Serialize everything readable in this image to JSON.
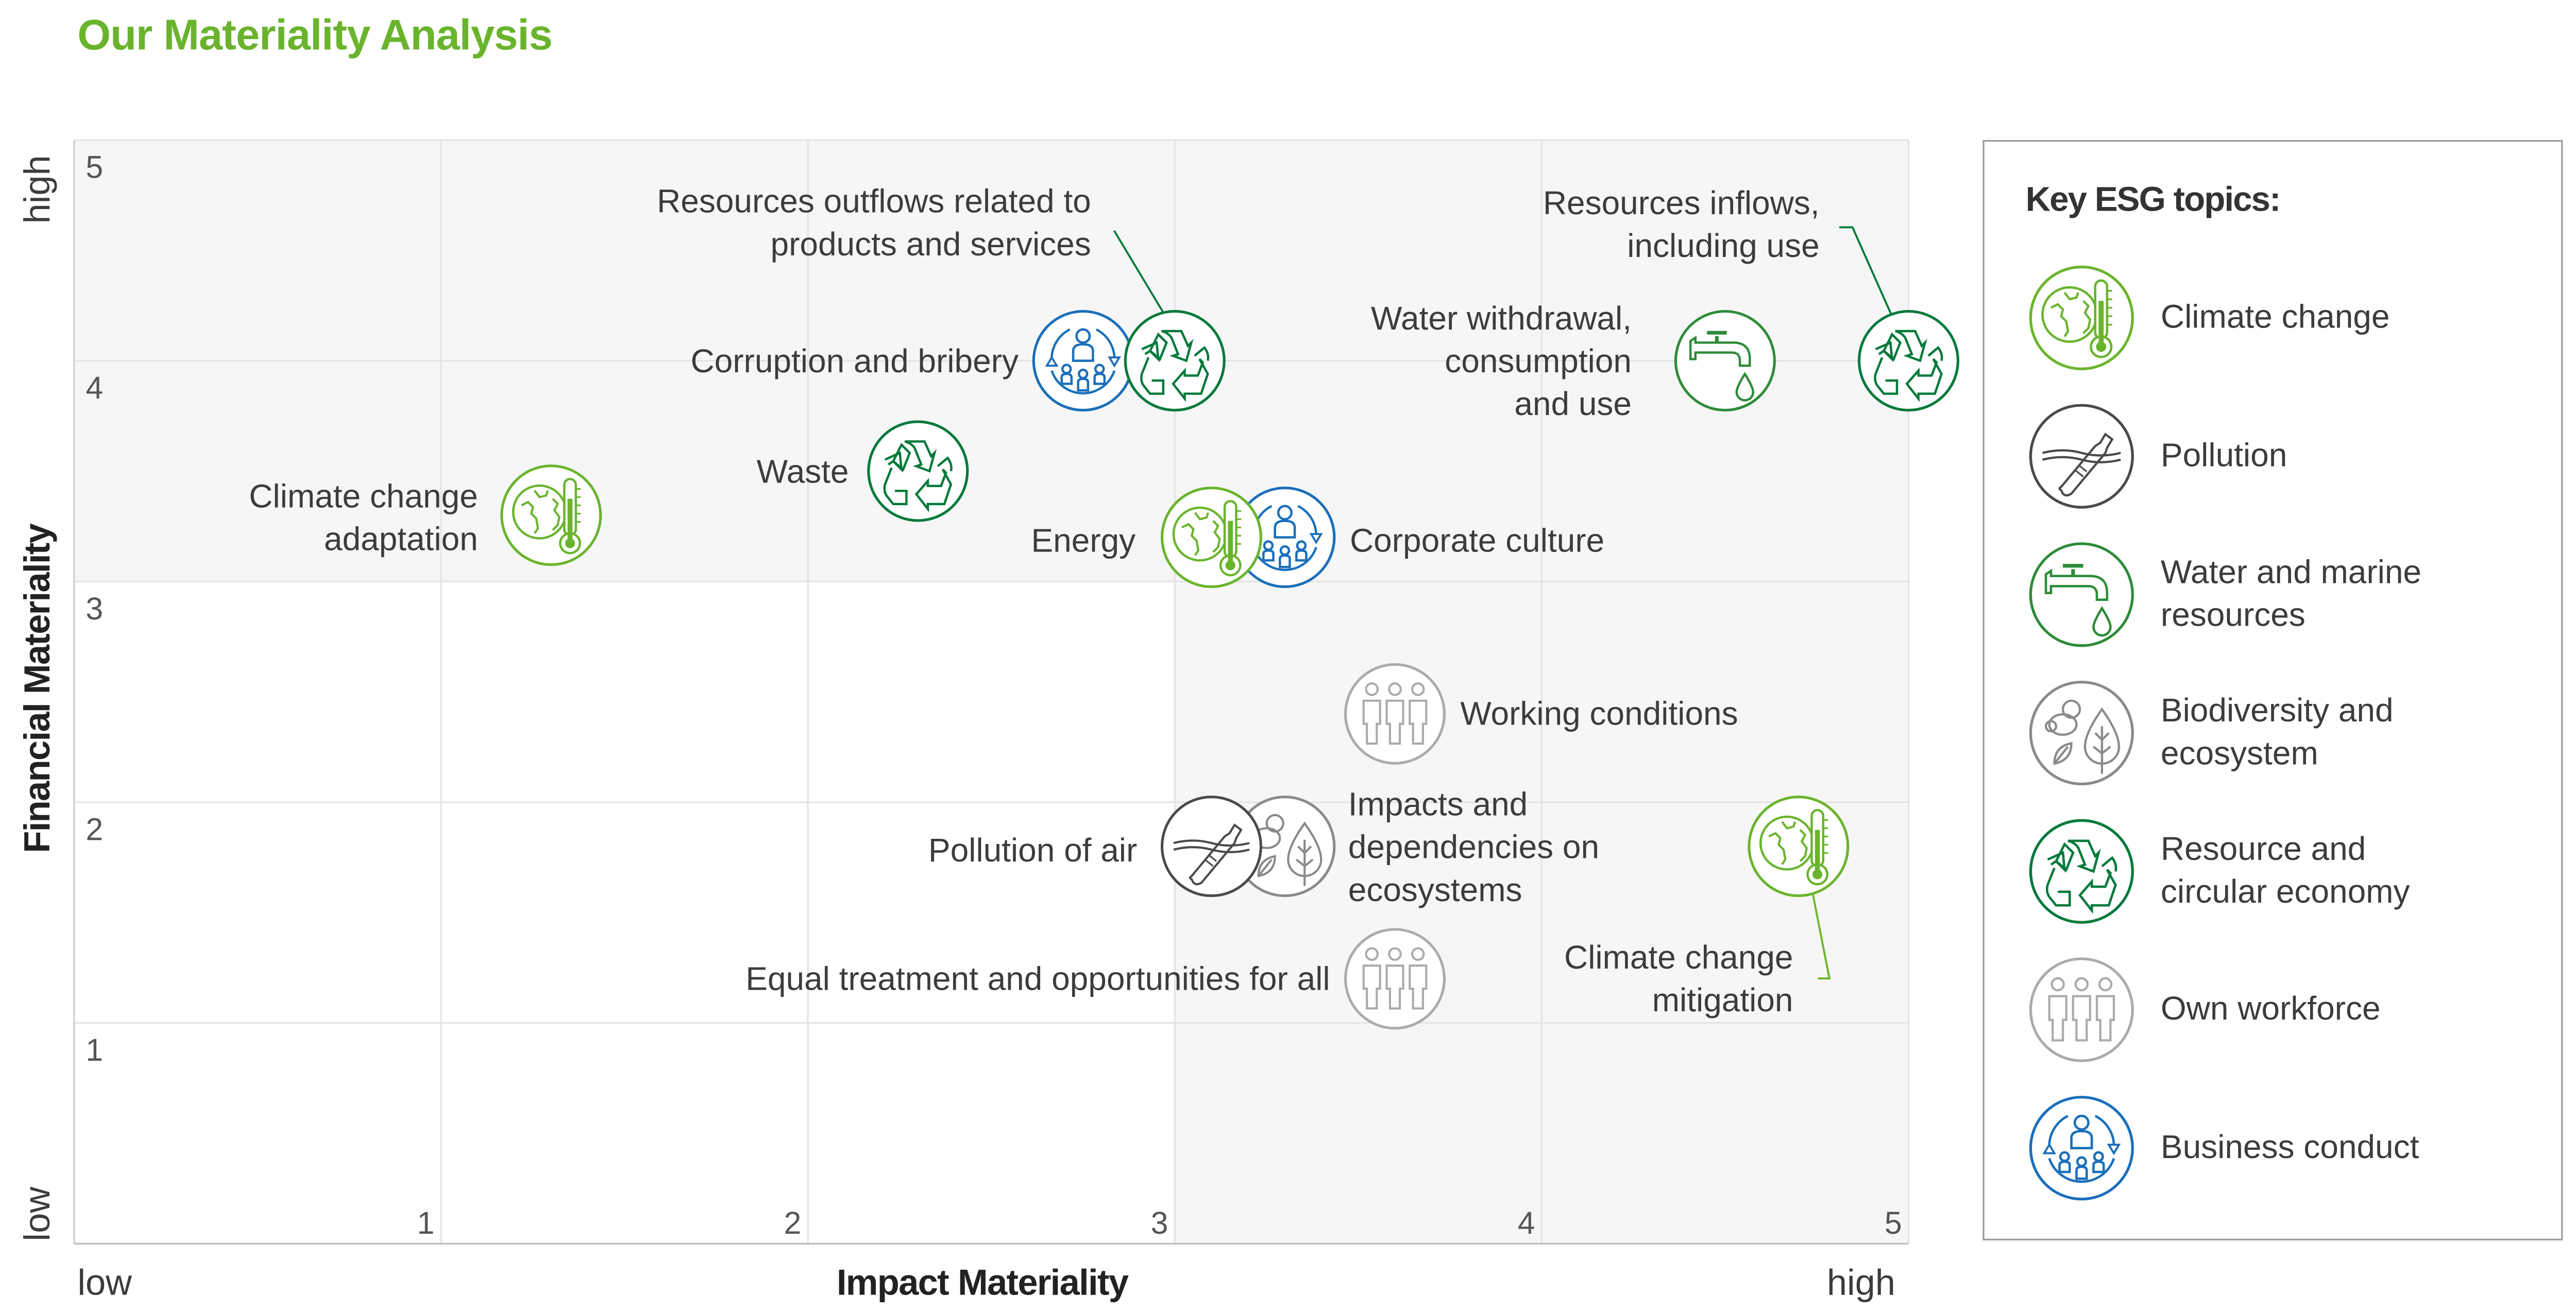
{
  "title": "Our Materiality Analysis",
  "legend": {
    "title": "Key ESG topics:",
    "items": [
      {
        "key": "climate",
        "label": "Climate change",
        "icon": "globe-thermometer-icon",
        "color": "#6ab42d"
      },
      {
        "key": "pollution",
        "label": "Pollution",
        "icon": "bottle-in-water-icon",
        "color": "#4a4a4a"
      },
      {
        "key": "water",
        "label": "Water and marine resources",
        "icon": "water-tap-icon",
        "color": "#2e8b3a"
      },
      {
        "key": "biodiversity",
        "label": "Biodiversity and ecosystem",
        "icon": "bee-leaf-icon",
        "color": "#8a8a8a"
      },
      {
        "key": "resource",
        "label": "Resource and circular economy",
        "icon": "recycle-icon",
        "color": "#00793a"
      },
      {
        "key": "workforce",
        "label": "Own workforce",
        "icon": "workers-icon",
        "color": "#ababab"
      },
      {
        "key": "business",
        "label": "Business conduct",
        "icon": "people-cycle-icon",
        "color": "#1a6fba"
      }
    ]
  },
  "chart_data": {
    "type": "scatter",
    "title": "Our Materiality Analysis",
    "xlabel": "Impact Materiality",
    "ylabel": "Financial Materiality",
    "x_low_label": "low",
    "x_high_label": "high",
    "y_low_label": "low",
    "y_high_label": "high",
    "xlim": [
      0,
      5
    ],
    "ylim": [
      0,
      5
    ],
    "xticks": [
      "1",
      "2",
      "3",
      "4",
      "5"
    ],
    "yticks": [
      "1",
      "2",
      "3",
      "4",
      "5"
    ],
    "grid": true,
    "legend_position": "right",
    "highlight_regions": "financial materiality above 3 or impact materiality above 3 shaded",
    "points": [
      {
        "label": "Climate change adaptation",
        "topic": "climate",
        "x": 1.3,
        "y": 3.3
      },
      {
        "label": "Waste",
        "topic": "resource",
        "x": 2.3,
        "y": 3.5
      },
      {
        "label": "Corruption and bribery",
        "topic": "business",
        "x": 2.75,
        "y": 4.0
      },
      {
        "label": "Resources outflows related to products and services",
        "topic": "resource",
        "x": 3.0,
        "y": 4.0
      },
      {
        "label": "Corporate culture",
        "topic": "business",
        "x": 3.3,
        "y": 3.2
      },
      {
        "label": "Energy",
        "topic": "climate",
        "x": 3.1,
        "y": 3.2
      },
      {
        "label": "Water withdrawal, consumption and use",
        "topic": "water",
        "x": 4.5,
        "y": 4.0
      },
      {
        "label": "Resources inflows, including use",
        "topic": "resource",
        "x": 5.0,
        "y": 4.0
      },
      {
        "label": "Working conditions",
        "topic": "workforce",
        "x": 3.6,
        "y": 2.4
      },
      {
        "label": "Impacts and dependencies on ecosystems",
        "topic": "biodiversity",
        "x": 3.3,
        "y": 1.8
      },
      {
        "label": "Pollution of air",
        "topic": "pollution",
        "x": 3.1,
        "y": 1.8
      },
      {
        "label": "Equal treatment and opportunities for all",
        "topic": "workforce",
        "x": 3.6,
        "y": 1.2
      },
      {
        "label": "Climate change mitigation",
        "topic": "climate",
        "x": 4.7,
        "y": 1.8
      }
    ]
  }
}
